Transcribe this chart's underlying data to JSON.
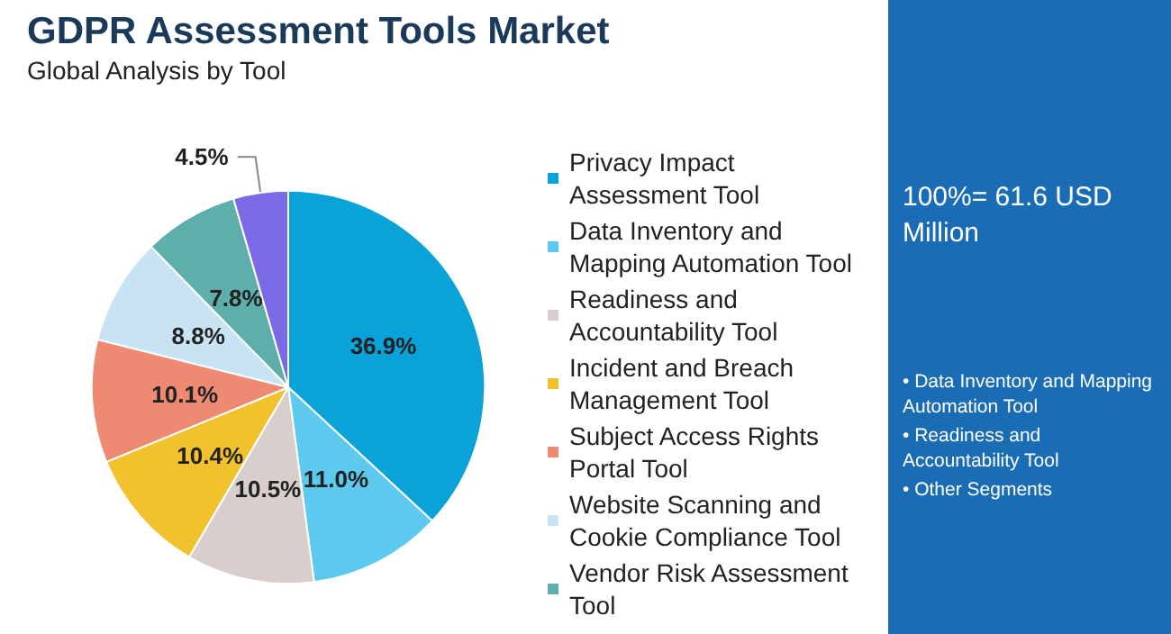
{
  "chart_data": {
    "type": "pie",
    "title": "GDPR Assessment Tools Market",
    "subtitle": "Global Analysis by Tool",
    "categories": [
      "Privacy Impact Assessment Tool",
      "Data Inventory and Mapping Automation Tool",
      "Readiness and Accountability Tool",
      "Incident and Breach Management Tool",
      "Subject Access Rights Portal Tool",
      "Website Scanning and Cookie Compliance Tool",
      "Vendor Risk Assessment Tool",
      null
    ],
    "values": [
      36.9,
      11.0,
      10.5,
      10.4,
      10.1,
      8.8,
      7.8,
      4.5
    ],
    "value_labels": [
      "36.9%",
      "11.0%",
      "10.5%",
      "10.4%",
      "10.1%",
      "8.8%",
      "7.8%",
      "4.5%"
    ],
    "colors": [
      "#0aa3d9",
      "#5dc9ef",
      "#d8cecb",
      "#f2c12e",
      "#ee8a71",
      "#c8e4f4",
      "#5eaeab",
      "#7b6ae6"
    ],
    "legend": "right",
    "annotations": [
      "100%= 61.6 USD Million",
      "• Data Inventory and Mapping Automation Tool",
      "• Readiness and Accountability Tool",
      "• Other Segments"
    ]
  }
}
